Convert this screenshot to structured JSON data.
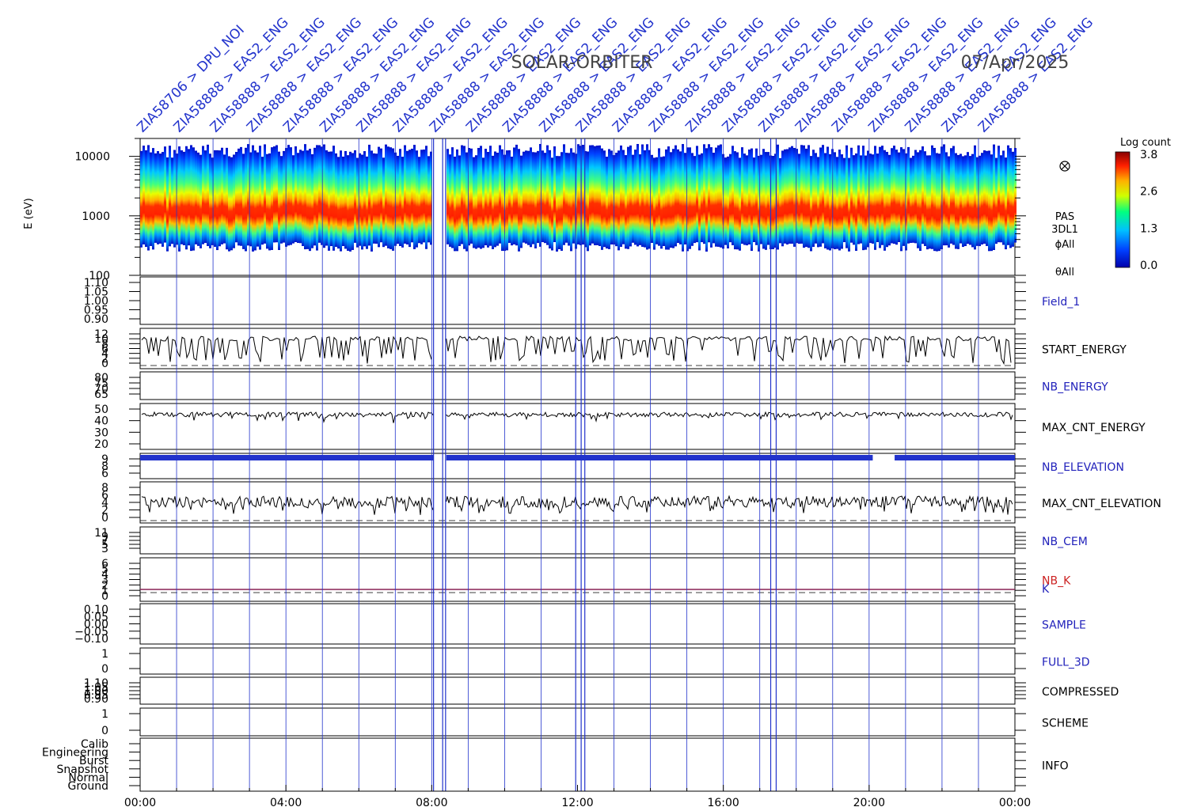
{
  "title": "SOLAR-ORBITER",
  "date": "07/Apr/2025",
  "energy_ylabel": "E (eV)",
  "energy_ticks": [
    "10000",
    "1000",
    "100"
  ],
  "side_labels": {
    "instrument": "PAS",
    "mode": "3DL1",
    "phi": "ϕAll",
    "theta": "θAll",
    "look_icon": "crossed-circle-icon"
  },
  "colorbar": {
    "title": "Log count",
    "ticks": [
      "3.8",
      "2.6",
      "1.3",
      "0.0"
    ]
  },
  "x_ticks": [
    "00:00",
    "04:00",
    "08:00",
    "12:00",
    "16:00",
    "20:00",
    "00:00"
  ],
  "top_annotations": [
    "ZIA58706 > DPU_NOI",
    "ZIA58888 > EAS2_ENG",
    "ZIA58888 > EAS2_ENG",
    "ZIA58888 > EAS2_ENG",
    "ZIA58888 > EAS2_ENG",
    "ZIA58888 > EAS2_ENG",
    "ZIA58888 > EAS2_ENG",
    "ZIA58888 > EAS2_ENG",
    "ZIA58888 > EAS2_ENG",
    "ZIA58888 > EAS2_ENG",
    "ZIA58888 > EAS2_ENG",
    "ZIA58888 > EAS2_ENG",
    "ZIA58888 > EAS2_ENG",
    "ZIA58888 > EAS2_ENG",
    "ZIA58888 > EAS2_ENG",
    "ZIA58888 > EAS2_ENG",
    "ZIA58888 > EAS2_ENG",
    "ZIA58888 > EAS2_ENG",
    "ZIA58888 > EAS2_ENG",
    "ZIA58888 > EAS2_ENG",
    "ZIA58888 > EAS2_ENG",
    "ZIA58888 > EAS2_ENG",
    "ZIA58888 > EAS2_ENG",
    "ZIA58888 > EAS2_ENG"
  ],
  "panels": [
    {
      "label": "Field_1",
      "label_color": "#2222bb",
      "ticks": [
        "1.10",
        "1.05",
        "1.00",
        "0.95",
        "0.90"
      ]
    },
    {
      "label": "START_ENERGY",
      "label_color": "#000000",
      "ticks": [
        "12",
        "10",
        "8",
        "6",
        "4",
        "2",
        "0"
      ]
    },
    {
      "label": "NB_ENERGY",
      "label_color": "#2222bb",
      "ticks": [
        "80",
        "75",
        "70",
        "65"
      ]
    },
    {
      "label": "MAX_CNT_ENERGY",
      "label_color": "#000000",
      "ticks": [
        "50",
        "40",
        "30",
        "20"
      ]
    },
    {
      "label": "NB_ELEVATION",
      "label_color": "#2222bb",
      "ticks": [
        "9",
        "8",
        "6"
      ]
    },
    {
      "label": "MAX_CNT_ELEVATION",
      "label_color": "#000000",
      "ticks": [
        "8",
        "6",
        "4",
        "2",
        "0"
      ]
    },
    {
      "label": "NB_CEM",
      "label_color": "#2222bb",
      "ticks": [
        "11",
        "9",
        "7",
        "5",
        "3"
      ]
    },
    {
      "label": "NB_K",
      "label_color": "#cc2222",
      "ticks": [
        "6",
        "5",
        "4",
        "3",
        "2",
        "1",
        "0"
      ]
    },
    {
      "label": "SAMPLE",
      "label_color": "#2222bb",
      "ticks": [
        "0.10",
        "0.05",
        "0.00",
        "−0.05",
        "−0.10"
      ]
    },
    {
      "label": "FULL_3D",
      "label_color": "#2222bb",
      "ticks": [
        "1",
        "0"
      ]
    },
    {
      "label": "COMPRESSED",
      "label_color": "#000000",
      "ticks": [
        "1.10",
        "1.05",
        "1.00",
        "0.95",
        "0.90"
      ]
    },
    {
      "label": "SCHEME",
      "label_color": "#000000",
      "ticks": [
        "1",
        "0"
      ]
    },
    {
      "label": "INFO",
      "label_color": "#000000",
      "ticks": [
        "Calib",
        "Engineering",
        "Burst",
        "Snapshot",
        "Normal",
        "Ground"
      ]
    }
  ],
  "k_label": "K",
  "chart_data": {
    "type": "heatmap",
    "title": "SOLAR-ORBITER",
    "subtitle": "07/Apr/2025",
    "x_range_hours": [
      0,
      24
    ],
    "energy_range_ev": [
      100,
      20000
    ],
    "energy_scale": "log",
    "colorbar_range_log_count": [
      0.0,
      3.8
    ],
    "data_gap_hours": [
      8.05,
      8.4
    ],
    "peak_energy_ev": 1000,
    "grid": true,
    "series": [
      {
        "name": "START_ENERGY",
        "typical": 9,
        "drops_to": 2
      },
      {
        "name": "MAX_CNT_ENERGY",
        "typical": 45,
        "range": [
          40,
          50
        ]
      },
      {
        "name": "NB_ELEVATION",
        "typical": 9
      },
      {
        "name": "MAX_CNT_ELEVATION",
        "range": [
          1,
          6
        ]
      },
      {
        "name": "NB_K",
        "typical": 1
      }
    ]
  }
}
